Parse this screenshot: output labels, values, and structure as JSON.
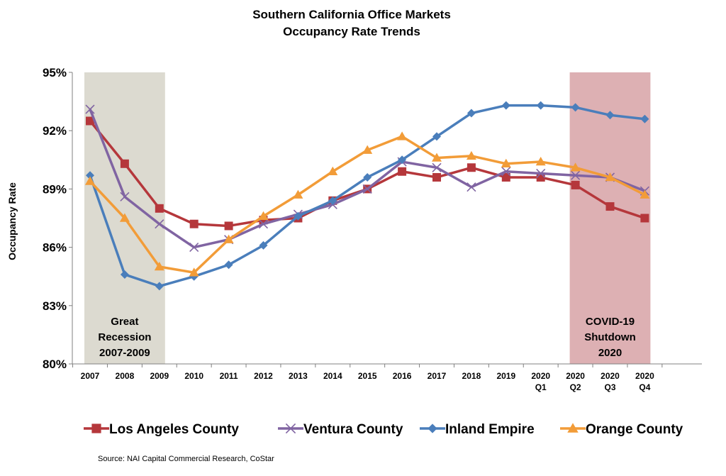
{
  "chart_data": {
    "type": "line",
    "title": "Southern California Office Markets",
    "subtitle": "Occupancy Rate Trends",
    "xlabel": "",
    "ylabel": "Occupancy Rate",
    "ylim": [
      80,
      95
    ],
    "yticks": [
      80,
      83,
      86,
      89,
      92,
      95
    ],
    "ytick_labels": [
      "80%",
      "83%",
      "86%",
      "89%",
      "92%",
      "95%"
    ],
    "categories": [
      "2007",
      "2008",
      "2009",
      "2010",
      "2011",
      "2012",
      "2013",
      "2014",
      "2015",
      "2016",
      "2017",
      "2018",
      "2019",
      "2020 Q1",
      "2020 Q2",
      "2020 Q3",
      "2020 Q4"
    ],
    "grid": false,
    "legend_position": "bottom",
    "series": [
      {
        "name": "Los Angeles County",
        "color": "#B5373B",
        "marker": "square",
        "values": [
          92.5,
          90.3,
          88.0,
          87.2,
          87.1,
          87.4,
          87.5,
          88.4,
          89.0,
          89.9,
          89.6,
          90.1,
          89.6,
          89.6,
          89.2,
          88.1,
          87.5
        ]
      },
      {
        "name": "Ventura County",
        "color": "#8064A2",
        "marker": "x",
        "values": [
          93.1,
          88.6,
          87.2,
          86.0,
          86.4,
          87.2,
          87.7,
          88.2,
          89.0,
          90.4,
          90.1,
          89.1,
          89.9,
          89.8,
          89.7,
          89.6,
          88.9
        ]
      },
      {
        "name": "Inland Empire",
        "color": "#4A7EBB",
        "marker": "diamond",
        "values": [
          89.7,
          84.6,
          84.0,
          84.5,
          85.1,
          86.1,
          87.6,
          88.4,
          89.6,
          90.5,
          91.7,
          92.9,
          93.3,
          93.3,
          93.2,
          92.8,
          92.6
        ]
      },
      {
        "name": "Orange County",
        "color": "#F29C38",
        "marker": "triangle",
        "values": [
          89.4,
          87.5,
          85.0,
          84.7,
          86.4,
          87.6,
          88.7,
          89.9,
          91.0,
          91.7,
          90.6,
          90.7,
          90.3,
          90.4,
          90.1,
          89.6,
          88.7
        ]
      }
    ],
    "annotations": [
      {
        "text": [
          "Great",
          "Recession",
          "2007-2009"
        ],
        "color": "#DCDAD0",
        "start": "2007",
        "end": "2009"
      },
      {
        "text": [
          "COVID-19",
          "Shutdown",
          "2020"
        ],
        "color": "#DDB0B3",
        "start": "2020 Q2",
        "end": "2020 Q4"
      }
    ],
    "source": "Source: NAI Capital Commercial Research, CoStar"
  }
}
